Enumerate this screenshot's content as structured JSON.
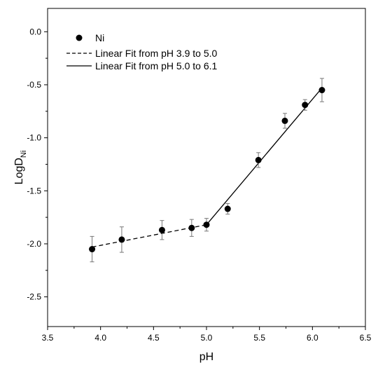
{
  "chart_data": {
    "type": "scatter",
    "xlabel": "pH",
    "ylabel_main": "LogD",
    "ylabel_sub": "Ni",
    "xlim": [
      3.5,
      6.5
    ],
    "ylim": [
      -2.78,
      0.22
    ],
    "xticks": [
      "3.5",
      "4.0",
      "4.5",
      "5.0",
      "5.5",
      "6.0",
      "6.5"
    ],
    "yticks": [
      "0.0",
      "-0.5",
      "-1.0",
      "-1.5",
      "-2.0",
      "-2.5"
    ],
    "legend_position": "top-left",
    "grid": false,
    "series": [
      {
        "name": "Ni",
        "kind": "points",
        "x": [
          3.92,
          4.2,
          4.58,
          4.86,
          5.0,
          5.2,
          5.49,
          5.74,
          5.93,
          6.09
        ],
        "y": [
          -2.05,
          -1.96,
          -1.87,
          -1.85,
          -1.82,
          -1.67,
          -1.21,
          -0.84,
          -0.69,
          -0.55
        ],
        "err": [
          0.12,
          0.12,
          0.09,
          0.08,
          0.06,
          0.05,
          0.07,
          0.07,
          0.05,
          0.11
        ]
      },
      {
        "name": "Linear Fit from pH 3.9 to 5.0",
        "kind": "dashed-line",
        "x": [
          3.92,
          5.0
        ],
        "y": [
          -2.03,
          -1.82
        ]
      },
      {
        "name": "Linear Fit from pH 5.0 to 6.1",
        "kind": "solid-line",
        "x": [
          5.0,
          6.09
        ],
        "y": [
          -1.82,
          -0.53
        ]
      }
    ]
  }
}
